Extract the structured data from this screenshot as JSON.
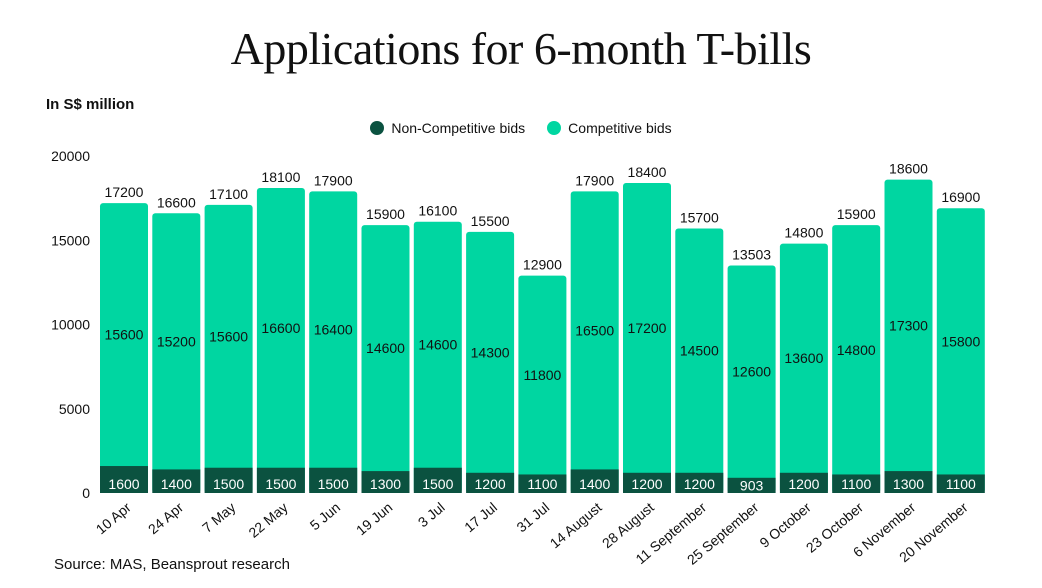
{
  "chart_data": {
    "type": "bar",
    "stacked": true,
    "title": "Applications for 6-month T-bills",
    "ylabel": "In S$ million",
    "source": "Source: MAS, Beansprout research",
    "ylim": [
      0,
      20000
    ],
    "yticks": [
      0,
      5000,
      10000,
      15000,
      20000
    ],
    "grid": false,
    "legend_position": "top-center",
    "categories": [
      "10 Apr",
      "24 Apr",
      "7 May",
      "22 May",
      "5 Jun",
      "19 Jun",
      "3 Jul",
      "17 Jul",
      "31 Jul",
      "14 August",
      "28 August",
      "11 September",
      "25 September",
      "9 October",
      "23 October",
      "6 November",
      "20 November"
    ],
    "series": [
      {
        "name": "Non-Competitive bids",
        "color": "#0b5240",
        "values": [
          1600,
          1400,
          1500,
          1500,
          1500,
          1300,
          1500,
          1200,
          1100,
          1400,
          1200,
          1200,
          903,
          1200,
          1100,
          1300,
          1100
        ]
      },
      {
        "name": "Competitive bids",
        "color": "#00d6a1",
        "values": [
          15600,
          15200,
          15600,
          16600,
          16400,
          14600,
          14600,
          14300,
          11800,
          16500,
          17200,
          14500,
          12600,
          13600,
          14800,
          17300,
          15800
        ]
      }
    ],
    "totals": [
      17200,
      16600,
      17100,
      18100,
      17900,
      15900,
      16100,
      15500,
      12900,
      17900,
      18400,
      15700,
      13503,
      14800,
      15900,
      18600,
      16900
    ]
  }
}
